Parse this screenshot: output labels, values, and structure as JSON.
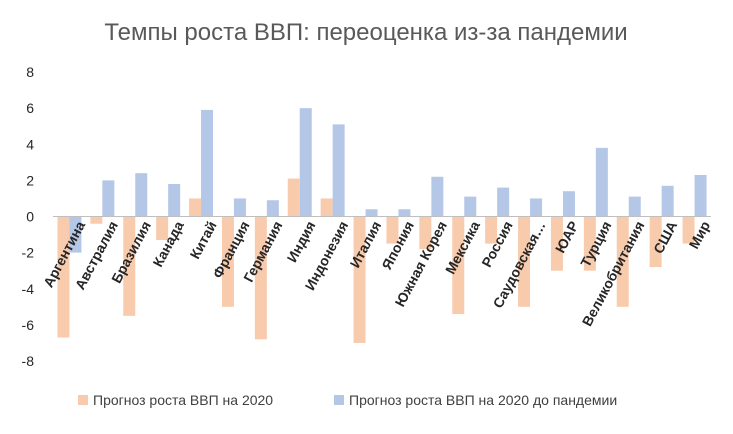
{
  "chart_data": {
    "type": "bar",
    "title": "Темпы роста ВВП: переоценка из-за пандемии",
    "xlabel": "",
    "ylabel": "",
    "ylim": [
      -8,
      8
    ],
    "yticks": [
      8,
      6,
      4,
      2,
      0,
      -2,
      -4,
      -6,
      -8
    ],
    "grid": false,
    "legend_position": "bottom",
    "categories": [
      "Аргентина",
      "Австралия",
      "Бразилия",
      "Канада",
      "Китай",
      "Франция",
      "Германия",
      "Индия",
      "Индонезия",
      "Италия",
      "Япония",
      "Южная Корея",
      "Мексика",
      "Россия",
      "Саудовская…",
      "ЮАР",
      "Турция",
      "Великобритания",
      "США",
      "Мир"
    ],
    "series": [
      {
        "name": "Прогноз роста ВВП на 2020",
        "color": "#F8CBAD",
        "values": [
          -6.7,
          -0.4,
          -5.5,
          -1.3,
          1.0,
          -5.0,
          -6.8,
          2.1,
          1.0,
          -7.0,
          -1.5,
          -1.8,
          -5.4,
          -1.5,
          -5.0,
          -3.0,
          -3.0,
          -5.0,
          -2.8,
          -1.5
        ]
      },
      {
        "name": "Прогноз роста ВВП на 2020 до пандемии",
        "color": "#B4C7E7",
        "values": [
          -2.0,
          2.0,
          2.4,
          1.8,
          5.9,
          1.0,
          0.9,
          6.0,
          5.1,
          0.4,
          0.4,
          2.2,
          1.1,
          1.6,
          1.0,
          1.4,
          3.8,
          1.1,
          1.7,
          2.3
        ]
      }
    ]
  }
}
